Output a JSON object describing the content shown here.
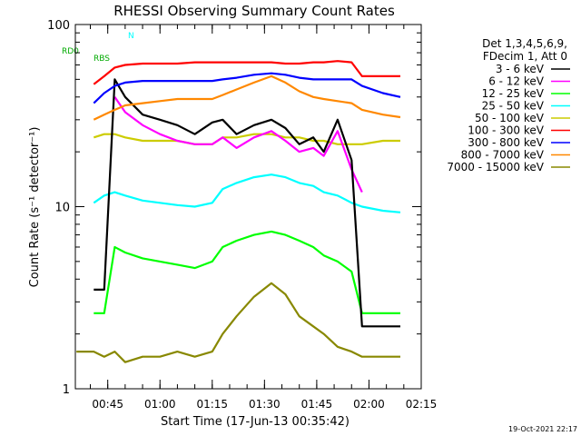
{
  "chart_data": {
    "type": "line",
    "title": "RHESSI Observing Summary Count Rates",
    "xlabel": "Start Time (17-Jun-13 00:35:42)",
    "ylabel": "Count Rate (s⁻¹ detector⁻¹)",
    "yscale": "log",
    "ylim": [
      1,
      100
    ],
    "xlim": [
      "00:35:42",
      "02:15:00"
    ],
    "x_ticks": [
      "00:45",
      "01:00",
      "01:15",
      "01:30",
      "01:45",
      "02:00",
      "02:15"
    ],
    "y_ticks": [
      "1",
      "10",
      "100"
    ],
    "grid": false,
    "legend_position": "right",
    "legend_header": [
      "Det 1,3,4,5,6,9,",
      "FDecim 1, Att 0"
    ],
    "timestamp": "19-Oct-2021 22:17",
    "flag_labels": [
      {
        "text": "N",
        "color": "#00ffff"
      },
      {
        "text": "RD0",
        "color": "#00aa00"
      },
      {
        "text": "RBS",
        "color": "#00aa00"
      }
    ],
    "series": [
      {
        "name": "3 - 6 keV",
        "color": "#000000",
        "x": [
          "00:41",
          "00:44",
          "00:47",
          "00:50",
          "00:55",
          "01:00",
          "01:05",
          "01:10",
          "01:15",
          "01:18",
          "01:22",
          "01:27",
          "01:32",
          "01:36",
          "01:40",
          "01:44",
          "01:47",
          "01:51",
          "01:55",
          "01:58",
          "02:04",
          "02:09"
        ],
        "values": [
          3.5,
          3.5,
          50,
          40,
          32,
          30,
          28,
          25,
          29,
          30,
          25,
          28,
          30,
          27,
          22,
          24,
          20,
          30,
          18,
          2.2,
          2.2,
          2.2
        ]
      },
      {
        "name": "6 - 12 keV",
        "color": "#ff00ff",
        "x": [
          "00:47",
          "00:50",
          "00:55",
          "01:00",
          "01:05",
          "01:10",
          "01:15",
          "01:18",
          "01:22",
          "01:27",
          "01:32",
          "01:36",
          "01:40",
          "01:44",
          "01:47",
          "01:51",
          "01:55",
          "01:58"
        ],
        "values": [
          40,
          33,
          28,
          25,
          23,
          22,
          22,
          24,
          21,
          24,
          26,
          23,
          20,
          21,
          19,
          26,
          16,
          12
        ]
      },
      {
        "name": "12 - 25 keV",
        "color": "#00ff00",
        "x": [
          "00:41",
          "00:44",
          "00:47",
          "00:50",
          "00:55",
          "01:00",
          "01:05",
          "01:10",
          "01:15",
          "01:18",
          "01:22",
          "01:27",
          "01:32",
          "01:36",
          "01:40",
          "01:44",
          "01:47",
          "01:51",
          "01:55",
          "01:58",
          "02:04",
          "02:09"
        ],
        "values": [
          2.6,
          2.6,
          6.0,
          5.6,
          5.2,
          5.0,
          4.8,
          4.6,
          5.0,
          6.0,
          6.5,
          7.0,
          7.3,
          7.0,
          6.5,
          6.0,
          5.4,
          5.0,
          4.4,
          2.6,
          2.6,
          2.6
        ]
      },
      {
        "name": "25 - 50 keV",
        "color": "#00ffff",
        "x": [
          "00:41",
          "00:44",
          "00:47",
          "00:50",
          "00:55",
          "01:00",
          "01:05",
          "01:10",
          "01:15",
          "01:18",
          "01:22",
          "01:27",
          "01:32",
          "01:36",
          "01:40",
          "01:44",
          "01:47",
          "01:51",
          "01:55",
          "01:58",
          "02:04",
          "02:09"
        ],
        "values": [
          10.5,
          11.5,
          12,
          11.5,
          10.8,
          10.5,
          10.2,
          10.0,
          10.5,
          12.5,
          13.5,
          14.5,
          15,
          14.5,
          13.5,
          13,
          12,
          11.5,
          10.5,
          10.0,
          9.5,
          9.3
        ]
      },
      {
        "name": "50 - 100 keV",
        "color": "#cccc00",
        "x": [
          "00:41",
          "00:44",
          "00:47",
          "00:50",
          "00:55",
          "01:00",
          "01:05",
          "01:10",
          "01:15",
          "01:18",
          "01:22",
          "01:27",
          "01:32",
          "01:36",
          "01:40",
          "01:44",
          "01:47",
          "01:51",
          "01:55",
          "01:58",
          "02:04",
          "02:09"
        ],
        "values": [
          24,
          25,
          25,
          24,
          23,
          23,
          23,
          22,
          22,
          24,
          24,
          25,
          25,
          24,
          24,
          23,
          23,
          22,
          22,
          22,
          23,
          23
        ]
      },
      {
        "name": "100 - 300 keV",
        "color": "#ff0000",
        "x": [
          "00:41",
          "00:44",
          "00:47",
          "00:50",
          "00:55",
          "01:00",
          "01:05",
          "01:10",
          "01:15",
          "01:18",
          "01:22",
          "01:27",
          "01:32",
          "01:36",
          "01:40",
          "01:44",
          "01:47",
          "01:51",
          "01:55",
          "01:58",
          "02:04",
          "02:09"
        ],
        "values": [
          47,
          52,
          58,
          60,
          61,
          61,
          61,
          62,
          62,
          62,
          62,
          62,
          62,
          61,
          61,
          62,
          62,
          63,
          62,
          52,
          52,
          52
        ]
      },
      {
        "name": "300 - 800 keV",
        "color": "#0000ff",
        "x": [
          "00:41",
          "00:44",
          "00:47",
          "00:50",
          "00:55",
          "01:00",
          "01:05",
          "01:10",
          "01:15",
          "01:18",
          "01:22",
          "01:27",
          "01:32",
          "01:36",
          "01:40",
          "01:44",
          "01:47",
          "01:51",
          "01:55",
          "01:58",
          "02:04",
          "02:09"
        ],
        "values": [
          37,
          42,
          46,
          48,
          49,
          49,
          49,
          49,
          49,
          50,
          51,
          53,
          54,
          53,
          51,
          50,
          50,
          50,
          50,
          46,
          42,
          40
        ]
      },
      {
        "name": "800 - 7000 keV",
        "color": "#ff8800",
        "x": [
          "00:41",
          "00:44",
          "00:47",
          "00:50",
          "00:55",
          "01:00",
          "01:05",
          "01:10",
          "01:15",
          "01:18",
          "01:22",
          "01:27",
          "01:32",
          "01:36",
          "01:40",
          "01:44",
          "01:47",
          "01:51",
          "01:55",
          "01:58",
          "02:04",
          "02:09"
        ],
        "values": [
          30,
          32,
          34,
          36,
          37,
          38,
          39,
          39,
          39,
          41,
          44,
          48,
          52,
          48,
          43,
          40,
          39,
          38,
          37,
          34,
          32,
          31
        ]
      },
      {
        "name": "7000 - 15000 keV",
        "color": "#888800",
        "x": [
          "00:36",
          "00:41",
          "00:44",
          "00:47",
          "00:50",
          "00:55",
          "01:00",
          "01:05",
          "01:10",
          "01:15",
          "01:18",
          "01:22",
          "01:27",
          "01:32",
          "01:36",
          "01:40",
          "01:44",
          "01:47",
          "01:51",
          "01:55",
          "01:58",
          "02:04",
          "02:09"
        ],
        "values": [
          1.6,
          1.6,
          1.5,
          1.6,
          1.4,
          1.5,
          1.5,
          1.6,
          1.5,
          1.6,
          2.0,
          2.5,
          3.2,
          3.8,
          3.3,
          2.5,
          2.2,
          2.0,
          1.7,
          1.6,
          1.5,
          1.5,
          1.5
        ]
      }
    ]
  }
}
